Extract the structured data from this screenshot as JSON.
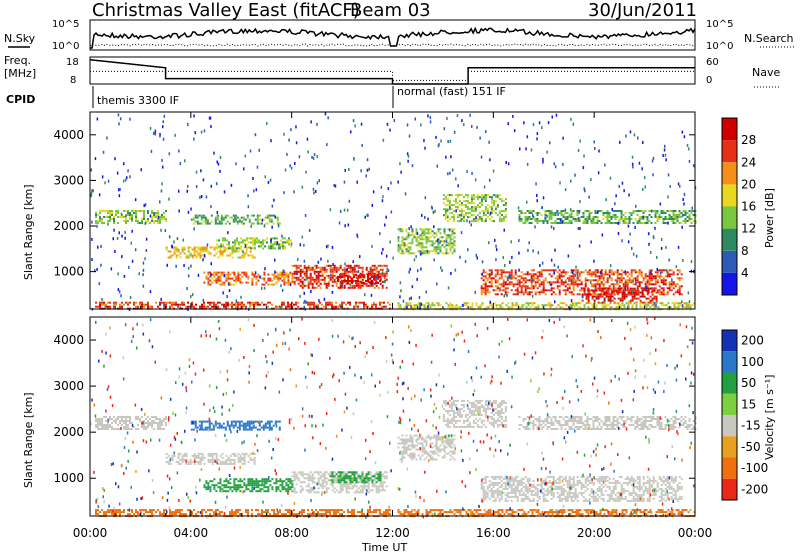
{
  "header": {
    "radar": "Christmas Valley East (fitACF)",
    "beam": "Beam 03",
    "date": "30/Jun/2011"
  },
  "params": {
    "left_labels": [
      "N.Sky",
      "Freq.",
      "[MHz]",
      "CPID"
    ],
    "right_labels": [
      "N.Search",
      "Nave"
    ],
    "noise_ticks": [
      "10^5",
      "10^0"
    ],
    "freq_ticks": [
      "18",
      "8"
    ],
    "nave_ticks": [
      "60",
      "0"
    ],
    "cpid_segments": [
      "themis 3300 IF",
      "normal (fast) 151 IF"
    ]
  },
  "time_axis": {
    "label": "Time UT",
    "ticks": [
      "00:00",
      "04:00",
      "08:00",
      "12:00",
      "16:00",
      "20:00",
      "00:00"
    ]
  },
  "chart_data": [
    {
      "type": "heatmap",
      "panel": "power",
      "ylabel": "Slant Range [km]",
      "yticks": [
        "1000",
        "2000",
        "3000",
        "4000"
      ],
      "ylim": [
        180,
        4500
      ],
      "xlim": [
        "00:00",
        "24:00"
      ],
      "colorbar": {
        "label": "Power [dB]",
        "ticks": [
          "4",
          "8",
          "12",
          "16",
          "20",
          "24",
          "28"
        ],
        "colors": [
          "#1515e8",
          "#2c5ab8",
          "#2e8a60",
          "#78c840",
          "#e8d820",
          "#f49018",
          "#e83018",
          "#d00000"
        ],
        "range": [
          0,
          30
        ]
      },
      "bands": [
        {
          "t0": 0.2,
          "t1": 3.0,
          "r0": 2050,
          "r1": 2350,
          "value": 14
        },
        {
          "t0": 3.0,
          "t1": 6.5,
          "r0": 1300,
          "r1": 1550,
          "value": 18
        },
        {
          "t0": 4.0,
          "t1": 7.5,
          "r0": 2050,
          "r1": 2250,
          "value": 12
        },
        {
          "t0": 5.0,
          "t1": 8.0,
          "r0": 1500,
          "r1": 1750,
          "value": 14
        },
        {
          "t0": 4.5,
          "t1": 8.0,
          "r0": 700,
          "r1": 1000,
          "value": 22
        },
        {
          "t0": 8.0,
          "t1": 11.8,
          "r0": 650,
          "r1": 1150,
          "value": 25
        },
        {
          "t0": 9.8,
          "t1": 11.5,
          "r0": 750,
          "r1": 950,
          "value": 28
        },
        {
          "t0": 0.2,
          "t1": 11.9,
          "r0": 190,
          "r1": 340,
          "value": 24
        },
        {
          "t0": 12.2,
          "t1": 14.5,
          "r0": 1400,
          "r1": 1950,
          "value": 14
        },
        {
          "t0": 14.0,
          "t1": 16.5,
          "r0": 2100,
          "r1": 2700,
          "value": 14
        },
        {
          "t0": 17.0,
          "t1": 24.0,
          "r0": 2050,
          "r1": 2350,
          "value": 12
        },
        {
          "t0": 15.5,
          "t1": 23.5,
          "r0": 500,
          "r1": 1050,
          "value": 24
        },
        {
          "t0": 19.5,
          "t1": 22.5,
          "r0": 300,
          "r1": 650,
          "value": 27
        },
        {
          "t0": 12.2,
          "t1": 24.0,
          "r0": 190,
          "r1": 330,
          "value": 16
        }
      ]
    },
    {
      "type": "heatmap",
      "panel": "velocity",
      "ylabel": "Slant Range [km]",
      "yticks": [
        "1000",
        "2000",
        "3000",
        "4000"
      ],
      "ylim": [
        180,
        4500
      ],
      "xlim": [
        "00:00",
        "24:00"
      ],
      "colorbar": {
        "label": "Velocity [m s⁻¹]",
        "ticks": [
          "200",
          "100",
          "50",
          "15",
          "-15",
          "-50",
          "-100",
          "-200"
        ],
        "colors": [
          "#1432b4",
          "#2a78c8",
          "#22a040",
          "#7cd040",
          "#c8c8c0",
          "#e8a020",
          "#f07010",
          "#e82818"
        ]
      },
      "bands": [
        {
          "t0": 0.2,
          "t1": 3.0,
          "r0": 2050,
          "r1": 2350,
          "value": 0
        },
        {
          "t0": 3.0,
          "t1": 6.5,
          "r0": 1300,
          "r1": 1550,
          "value": 0
        },
        {
          "t0": 4.0,
          "t1": 7.5,
          "r0": 2050,
          "r1": 2250,
          "value": 130
        },
        {
          "t0": 4.5,
          "t1": 8.0,
          "r0": 700,
          "r1": 1000,
          "value": 45
        },
        {
          "t0": 8.0,
          "t1": 11.8,
          "r0": 700,
          "r1": 1150,
          "value": 0
        },
        {
          "t0": 9.5,
          "t1": 11.5,
          "r0": 900,
          "r1": 1150,
          "value": 40
        },
        {
          "t0": 12.2,
          "t1": 14.5,
          "r0": 1400,
          "r1": 1950,
          "value": 0
        },
        {
          "t0": 14.0,
          "t1": 16.5,
          "r0": 2100,
          "r1": 2700,
          "value": 0
        },
        {
          "t0": 17.0,
          "t1": 24.0,
          "r0": 2050,
          "r1": 2350,
          "value": 0
        },
        {
          "t0": 15.5,
          "t1": 23.5,
          "r0": 500,
          "r1": 1050,
          "value": 0
        },
        {
          "t0": 0.2,
          "t1": 11.9,
          "r0": 190,
          "r1": 330,
          "value": -60
        },
        {
          "t0": 12.2,
          "t1": 24.0,
          "r0": 190,
          "r1": 330,
          "value": -40
        }
      ]
    }
  ]
}
